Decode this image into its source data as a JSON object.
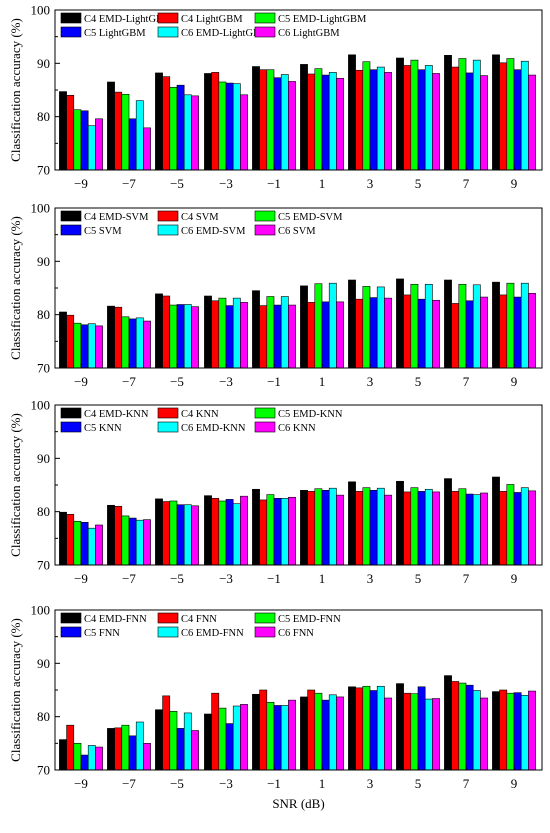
{
  "colors": {
    "C4_EMD": "#000000",
    "C4": "#ff0000",
    "C5_EMD": "#00ff00",
    "C5": "#0000ff",
    "C6_EMD": "#00ffff",
    "C6": "#ff00ff"
  },
  "shared": {
    "xlabel": "SNR (dB)",
    "ylabel": "Classification accuracy (%)",
    "categories": [
      "−9",
      "−7",
      "−5",
      "−3",
      "−1",
      "1",
      "3",
      "5",
      "7",
      "9"
    ],
    "y_ticks": [
      "70",
      "80",
      "90",
      "100"
    ]
  },
  "chart_data": [
    {
      "type": "bar",
      "title": "",
      "ylabel": "Classification accuracy (%)",
      "xlabel": "",
      "ylim": [
        70,
        100
      ],
      "categories": [
        -9,
        -7,
        -5,
        -3,
        -1,
        1,
        3,
        5,
        7,
        9
      ],
      "legend": "top-left, 3 columns",
      "series": [
        {
          "name": "C4 EMD-LightGBM",
          "color": "#000000",
          "values": [
            84.7,
            86.5,
            88.2,
            88.1,
            89.4,
            89.8,
            91.6,
            91.0,
            91.5,
            91.6
          ]
        },
        {
          "name": "C4 LightGBM",
          "color": "#ff0000",
          "values": [
            84.0,
            84.6,
            87.5,
            88.3,
            88.8,
            88.0,
            88.7,
            89.6,
            89.3,
            90.1
          ]
        },
        {
          "name": "C5 EMD-LightGBM",
          "color": "#00ff00",
          "values": [
            81.3,
            84.2,
            85.5,
            86.5,
            88.8,
            89.0,
            90.3,
            90.6,
            90.9,
            90.9
          ]
        },
        {
          "name": "C5 LightGBM",
          "color": "#0000ff",
          "values": [
            81.1,
            79.6,
            85.9,
            86.3,
            87.3,
            87.8,
            88.8,
            88.8,
            88.2,
            88.8
          ]
        },
        {
          "name": "C6 EMD-LightGBM",
          "color": "#00ffff",
          "values": [
            78.3,
            83.0,
            84.1,
            86.2,
            87.9,
            88.3,
            89.3,
            89.6,
            90.6,
            90.4
          ]
        },
        {
          "name": "C6 LightGBM",
          "color": "#ff00ff",
          "values": [
            79.6,
            77.9,
            83.9,
            84.1,
            86.6,
            87.2,
            88.3,
            88.1,
            87.7,
            87.8
          ]
        }
      ]
    },
    {
      "type": "bar",
      "title": "",
      "ylabel": "Classification accuracy (%)",
      "xlabel": "",
      "ylim": [
        70,
        100
      ],
      "categories": [
        -9,
        -7,
        -5,
        -3,
        -1,
        1,
        3,
        5,
        7,
        9
      ],
      "legend": "top-left, 3 columns",
      "series": [
        {
          "name": "C4 EMD-SVM",
          "color": "#000000",
          "values": [
            80.5,
            81.6,
            83.9,
            83.5,
            84.5,
            85.4,
            86.5,
            86.7,
            86.5,
            86.1
          ]
        },
        {
          "name": "C4 SVM",
          "color": "#ff0000",
          "values": [
            79.9,
            81.4,
            83.5,
            82.6,
            81.7,
            82.3,
            82.9,
            83.7,
            82.1,
            83.7
          ]
        },
        {
          "name": "C5 EMD-SVM",
          "color": "#00ff00",
          "values": [
            78.4,
            79.6,
            81.8,
            83.1,
            83.4,
            85.8,
            85.3,
            85.7,
            85.7,
            85.9
          ]
        },
        {
          "name": "C5 SVM",
          "color": "#0000ff",
          "values": [
            78.1,
            79.2,
            81.9,
            81.7,
            81.8,
            82.4,
            83.2,
            82.9,
            82.6,
            83.3
          ]
        },
        {
          "name": "C6 EMD-SVM",
          "color": "#00ffff",
          "values": [
            78.3,
            79.4,
            81.9,
            83.1,
            83.4,
            85.9,
            85.2,
            85.7,
            85.6,
            85.9
          ]
        },
        {
          "name": "C6 SVM",
          "color": "#ff00ff",
          "values": [
            77.9,
            78.8,
            81.5,
            82.3,
            81.8,
            82.4,
            83.1,
            82.7,
            83.3,
            84.0
          ]
        }
      ]
    },
    {
      "type": "bar",
      "title": "",
      "ylabel": "Classification accuracy (%)",
      "xlabel": "",
      "ylim": [
        70,
        100
      ],
      "categories": [
        -9,
        -7,
        -5,
        -3,
        -1,
        1,
        3,
        5,
        7,
        9
      ],
      "legend": "top-left, 3 columns",
      "series": [
        {
          "name": "C4 EMD-KNN",
          "color": "#000000",
          "values": [
            79.9,
            81.2,
            82.4,
            83.0,
            84.2,
            84.0,
            85.6,
            85.7,
            86.2,
            86.5
          ]
        },
        {
          "name": "C4 KNN",
          "color": "#ff0000",
          "values": [
            79.5,
            81.0,
            81.9,
            82.5,
            82.2,
            83.8,
            83.8,
            83.7,
            83.8,
            83.8
          ]
        },
        {
          "name": "C5 EMD-KNN",
          "color": "#00ff00",
          "values": [
            78.2,
            79.2,
            82.0,
            82.0,
            83.2,
            84.3,
            84.5,
            84.5,
            84.3,
            85.1
          ]
        },
        {
          "name": "C5 KNN",
          "color": "#0000ff",
          "values": [
            78.0,
            78.8,
            81.3,
            82.3,
            82.5,
            84.0,
            84.0,
            83.8,
            83.3,
            83.6
          ]
        },
        {
          "name": "C6 EMD-KNN",
          "color": "#00ffff",
          "values": [
            76.9,
            78.4,
            81.3,
            81.5,
            82.5,
            84.4,
            84.4,
            84.2,
            83.2,
            84.5
          ]
        },
        {
          "name": "C6 KNN",
          "color": "#ff00ff",
          "values": [
            77.5,
            78.5,
            81.1,
            82.9,
            82.7,
            83.1,
            83.1,
            83.7,
            83.5,
            83.9
          ]
        }
      ]
    },
    {
      "type": "bar",
      "title": "",
      "ylabel": "Classification accuracy (%)",
      "xlabel": "SNR (dB)",
      "ylim": [
        70,
        100
      ],
      "categories": [
        -9,
        -7,
        -5,
        -3,
        -1,
        1,
        3,
        5,
        7,
        9
      ],
      "legend": "top-left, 3 columns",
      "series": [
        {
          "name": "C4 EMD-FNN",
          "color": "#000000",
          "values": [
            75.7,
            77.8,
            81.3,
            80.5,
            84.2,
            83.7,
            85.6,
            86.2,
            87.7,
            84.7
          ]
        },
        {
          "name": "C4 FNN",
          "color": "#ff0000",
          "values": [
            78.4,
            77.9,
            83.9,
            84.4,
            85.0,
            85.0,
            85.4,
            84.4,
            86.6,
            85.0
          ]
        },
        {
          "name": "C5 EMD-FNN",
          "color": "#00ff00",
          "values": [
            75.0,
            78.4,
            81.0,
            81.6,
            82.7,
            84.4,
            85.7,
            84.3,
            86.3,
            84.4
          ]
        },
        {
          "name": "C5 FNN",
          "color": "#0000ff",
          "values": [
            72.8,
            76.4,
            77.8,
            78.7,
            82.1,
            83.1,
            84.9,
            85.6,
            85.9,
            84.5
          ]
        },
        {
          "name": "C6 EMD-FNN",
          "color": "#00ffff",
          "values": [
            74.6,
            79.0,
            80.7,
            82.0,
            82.1,
            84.1,
            85.7,
            83.3,
            84.9,
            84.0
          ]
        },
        {
          "name": "C6 FNN",
          "color": "#ff00ff",
          "values": [
            74.3,
            75.0,
            77.4,
            82.3,
            83.1,
            83.7,
            83.5,
            83.4,
            83.5,
            84.8
          ]
        }
      ]
    }
  ]
}
